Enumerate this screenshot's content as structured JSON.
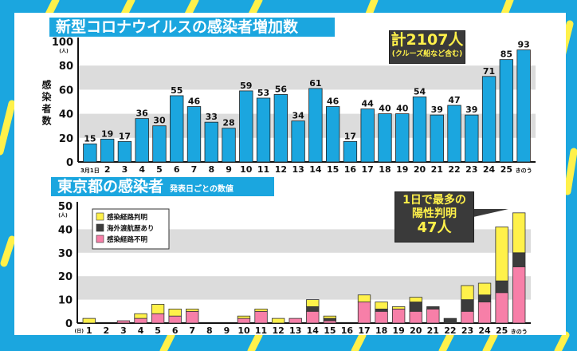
{
  "colors": {
    "background": "#1ba6df",
    "stripe": "#fff14a",
    "bar": "#1ba6df",
    "band": "#dcdcdc",
    "known": "#fff14a",
    "overseas": "#3c3c3c",
    "unknown": "#f77fa8"
  },
  "chart_data": [
    {
      "type": "bar",
      "title": "新型コロナウイルスの感染者増加数",
      "ylabel": "感染者数",
      "yunit": "(人)",
      "ylim": [
        0,
        100
      ],
      "yticks": [
        0,
        20,
        40,
        60,
        80,
        100
      ],
      "grid": "alternating bands",
      "categories": [
        "3月1日",
        "2",
        "3",
        "4",
        "5",
        "6",
        "7",
        "8",
        "9",
        "10",
        "11",
        "12",
        "13",
        "14",
        "15",
        "16",
        "17",
        "18",
        "19",
        "20",
        "21",
        "22",
        "23",
        "24",
        "25",
        "きのう"
      ],
      "values": [
        15,
        19,
        17,
        36,
        30,
        55,
        46,
        33,
        28,
        59,
        53,
        56,
        34,
        61,
        46,
        17,
        44,
        40,
        40,
        54,
        39,
        47,
        39,
        71,
        85,
        93
      ],
      "annotation": {
        "line1": "計2107人",
        "line2": "(クルーズ船など含む)"
      }
    },
    {
      "type": "bar",
      "stacked": true,
      "title": "東京都の感染者",
      "subtitle": "発表日ごとの数値",
      "yunit": "(人)",
      "xunit": "(日)",
      "ylim": [
        0,
        50
      ],
      "yticks": [
        0,
        10,
        20,
        30,
        40,
        50
      ],
      "legend": "top-left",
      "categories": [
        "1",
        "2",
        "3",
        "4",
        "5",
        "6",
        "7",
        "8",
        "9",
        "10",
        "11",
        "12",
        "13",
        "14",
        "15",
        "16",
        "17",
        "18",
        "19",
        "20",
        "21",
        "22",
        "23",
        "24",
        "25",
        "きのう"
      ],
      "series": [
        {
          "name": "感染経路不明",
          "values": [
            0,
            0,
            1,
            2,
            4,
            3,
            5,
            0,
            0,
            2,
            5,
            0,
            2,
            5,
            1,
            0,
            9,
            5,
            6,
            5,
            6,
            0,
            5,
            9,
            13,
            24
          ]
        },
        {
          "name": "海外渡航歴あり",
          "values": [
            0,
            0,
            0,
            0,
            0,
            0,
            0,
            0,
            0,
            0,
            0,
            0,
            0,
            2,
            1,
            0,
            0,
            1,
            0,
            4,
            1,
            2,
            5,
            3,
            5,
            6
          ]
        },
        {
          "name": "感染経路判明",
          "values": [
            2,
            0,
            0,
            2,
            4,
            3,
            1,
            0,
            0,
            1,
            1,
            2,
            0,
            3,
            1,
            0,
            3,
            3,
            1,
            2,
            0,
            0,
            6,
            5,
            23,
            17
          ]
        }
      ],
      "annotation": {
        "line1": "1日で最多の",
        "line2": "陽性判明",
        "line3": "47人"
      }
    }
  ]
}
